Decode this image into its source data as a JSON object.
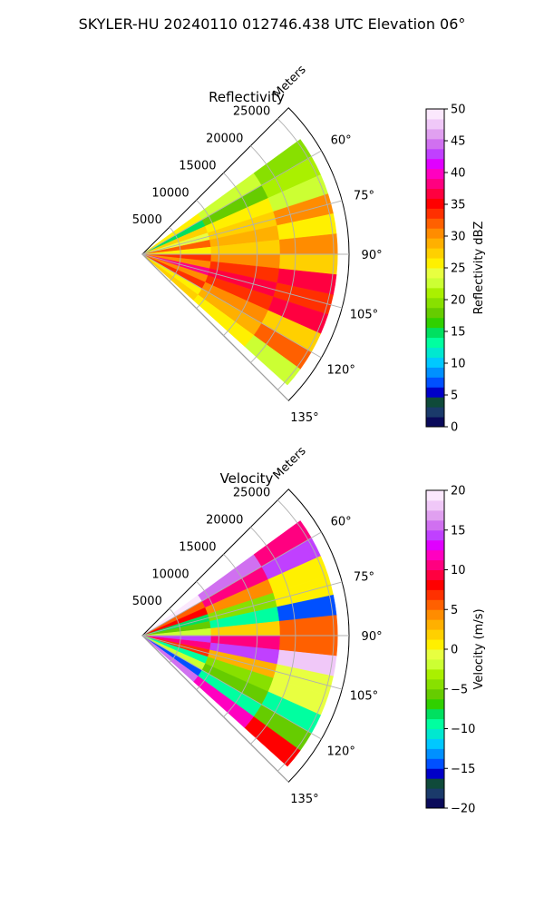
{
  "figure": {
    "title": "SKYLER-HU  20240110  012746.438 UTC Elevation 06°"
  },
  "panels": [
    {
      "title": "Reflectivity",
      "radial_label": "Meters",
      "radial_ticks": [
        "5000",
        "10000",
        "15000",
        "20000",
        "25000"
      ],
      "angle_ticks": [
        "60°",
        "75°",
        "90°",
        "105°",
        "120°",
        "135°"
      ],
      "colorbar": {
        "label": "Reflectivity dBZ",
        "ticks": [
          "0",
          "5",
          "10",
          "15",
          "20",
          "25",
          "30",
          "35",
          "40",
          "45",
          "50"
        ],
        "range": [
          0,
          50
        ],
        "colors": [
          "#0a0a5a",
          "#1a3a6a",
          "#0f4a3a",
          "#0000c8",
          "#0050ff",
          "#0090ff",
          "#00c8ff",
          "#00e8d0",
          "#00ffa0",
          "#00e060",
          "#30d000",
          "#66cc00",
          "#88e000",
          "#aaf000",
          "#ccff33",
          "#e8ff40",
          "#fff000",
          "#ffd000",
          "#ffb000",
          "#ff8c00",
          "#ff6000",
          "#ff3000",
          "#ff0000",
          "#ff0040",
          "#ff0080",
          "#ff00c0",
          "#e000ff",
          "#c040ff",
          "#d070f0",
          "#e0a0f0",
          "#f0c8f8",
          "#fbe8fd"
        ]
      }
    },
    {
      "title": "Velocity",
      "radial_label": "Meters",
      "radial_ticks": [
        "5000",
        "10000",
        "15000",
        "20000",
        "25000"
      ],
      "angle_ticks": [
        "60°",
        "75°",
        "90°",
        "105°",
        "120°",
        "135°"
      ],
      "colorbar": {
        "label": "Velocity (m/s)",
        "ticks": [
          "−20",
          "−15",
          "−10",
          "−5",
          "0",
          "5",
          "10",
          "15",
          "20"
        ],
        "range": [
          -20,
          20
        ],
        "colors": [
          "#0a0a5a",
          "#1a3a6a",
          "#0f4a3a",
          "#0000c8",
          "#0050ff",
          "#0090ff",
          "#00c8ff",
          "#00e8d0",
          "#00ffa0",
          "#00e060",
          "#30d000",
          "#66cc00",
          "#88e000",
          "#aaf000",
          "#ccff33",
          "#e8ff40",
          "#fff000",
          "#ffd000",
          "#ffb000",
          "#ff8c00",
          "#ff6000",
          "#ff3000",
          "#ff0000",
          "#ff0040",
          "#ff0080",
          "#ff00c0",
          "#e000ff",
          "#c040ff",
          "#d070f0",
          "#e0a0f0",
          "#f0c8f8",
          "#fbe8fd"
        ]
      }
    }
  ],
  "chart_data": [
    {
      "type": "heatmap",
      "projection": "polar sector",
      "title": "Reflectivity",
      "units": "dBZ",
      "azimuth_range_deg": [
        45,
        135
      ],
      "range_m": [
        0,
        27000
      ],
      "value_range": [
        0,
        50
      ],
      "series": [
        {
          "azimuth_deg": 57,
          "value": 23
        },
        {
          "azimuth_deg": 63,
          "value": 18
        },
        {
          "azimuth_deg": 69,
          "value": 25
        },
        {
          "azimuth_deg": 75,
          "value": 27
        },
        {
          "azimuth_deg": 81,
          "value": 29
        },
        {
          "azimuth_deg": 87,
          "value": 28
        },
        {
          "azimuth_deg": 93,
          "value": 31
        },
        {
          "azimuth_deg": 99,
          "value": 34
        },
        {
          "azimuth_deg": 105,
          "value": 36
        },
        {
          "azimuth_deg": 111,
          "value": 33
        },
        {
          "azimuth_deg": 117,
          "value": 30
        },
        {
          "azimuth_deg": 123,
          "value": 29
        },
        {
          "azimuth_deg": 129,
          "value": 25
        }
      ]
    },
    {
      "type": "heatmap",
      "projection": "polar sector",
      "title": "Velocity",
      "units": "m/s",
      "azimuth_range_deg": [
        45,
        135
      ],
      "range_m": [
        0,
        27000
      ],
      "value_range": [
        -20,
        20
      ],
      "series": [
        {
          "azimuth_deg": 57,
          "value": 15
        },
        {
          "azimuth_deg": 63,
          "value": 10
        },
        {
          "azimuth_deg": 69,
          "value": 4
        },
        {
          "azimuth_deg": 75,
          "value": -4
        },
        {
          "azimuth_deg": 81,
          "value": -10
        },
        {
          "azimuth_deg": 87,
          "value": 2
        },
        {
          "azimuth_deg": 93,
          "value": 10
        },
        {
          "azimuth_deg": 99,
          "value": 14
        },
        {
          "azimuth_deg": 105,
          "value": 3
        },
        {
          "azimuth_deg": 111,
          "value": -5
        },
        {
          "azimuth_deg": 117,
          "value": -6
        },
        {
          "azimuth_deg": 123,
          "value": -10
        },
        {
          "azimuth_deg": 129,
          "value": 12
        }
      ]
    }
  ]
}
